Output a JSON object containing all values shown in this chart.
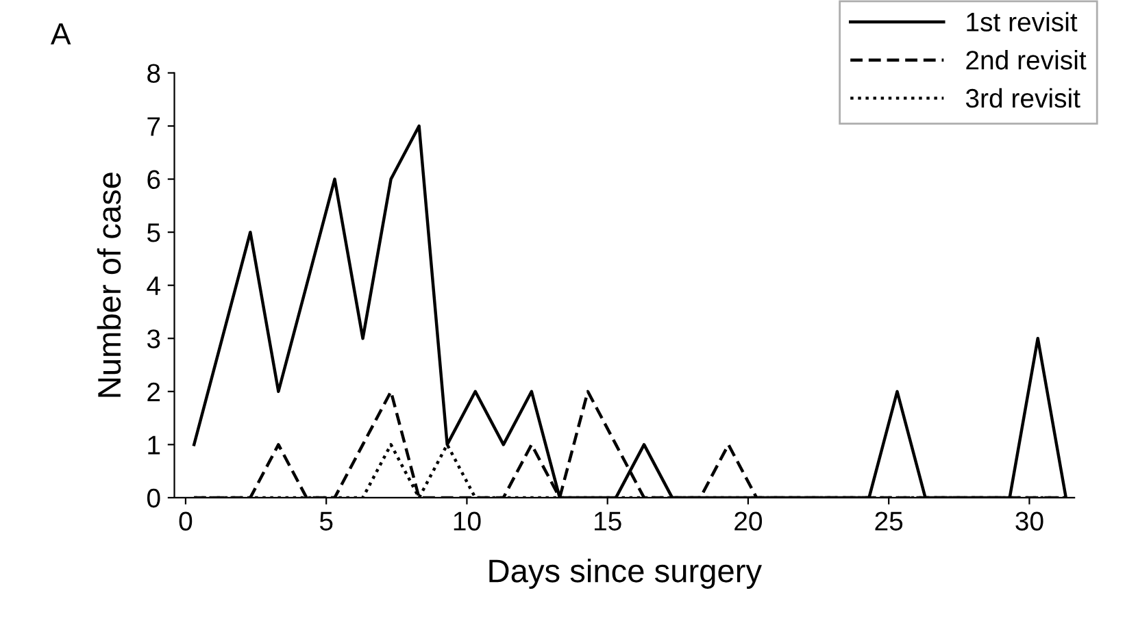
{
  "chart_data": {
    "type": "line",
    "title": "A",
    "xlabel": "Days since surgery",
    "ylabel": "Number of case",
    "x": [
      0.3,
      1.3,
      2.3,
      3.3,
      4.3,
      5.3,
      6.3,
      7.3,
      8.3,
      9.3,
      10.3,
      11.3,
      12.3,
      13.3,
      14.3,
      15.3,
      16.3,
      17.3,
      18.3,
      19.3,
      20.3,
      21.3,
      22.3,
      23.3,
      24.3,
      25.3,
      26.3,
      27.3,
      28.3,
      29.3,
      30.3,
      31.3
    ],
    "series": [
      {
        "name": "1st revisit",
        "color": "#000000",
        "line_style": "solid",
        "values": [
          1,
          3,
          5,
          2,
          4,
          6,
          3,
          6,
          7,
          1,
          2,
          1,
          2,
          0,
          0,
          0,
          1,
          0,
          0,
          0,
          0,
          0,
          0,
          0,
          0,
          2,
          0,
          0,
          0,
          0,
          3,
          0
        ]
      },
      {
        "name": "2nd revisit",
        "color": "#000000",
        "line_style": "dashed",
        "values": [
          0,
          0,
          0,
          1,
          0,
          0,
          1,
          2,
          0,
          0,
          0,
          0,
          1,
          0,
          2,
          1,
          0,
          0,
          0,
          1,
          0,
          0,
          0,
          0,
          0,
          0,
          0,
          0,
          0,
          0,
          0,
          0
        ]
      },
      {
        "name": "3rd revisit",
        "color": "#000000",
        "line_style": "dotted",
        "values": [
          0,
          0,
          0,
          0,
          0,
          0,
          0,
          1,
          0,
          1,
          0,
          0,
          0,
          0,
          0,
          0,
          0,
          0,
          0,
          0,
          0,
          0,
          0,
          0,
          0,
          0,
          0,
          0,
          0,
          0,
          0,
          0
        ]
      }
    ],
    "xlim": [
      -0.4,
      31.6
    ],
    "ylim": [
      0,
      8
    ],
    "xticks": [
      0,
      5,
      10,
      15,
      20,
      25,
      30
    ],
    "yticks": [
      0,
      1,
      2,
      3,
      4,
      5,
      6,
      7,
      8
    ],
    "legend": "top right",
    "grid": false,
    "marker": "none"
  }
}
